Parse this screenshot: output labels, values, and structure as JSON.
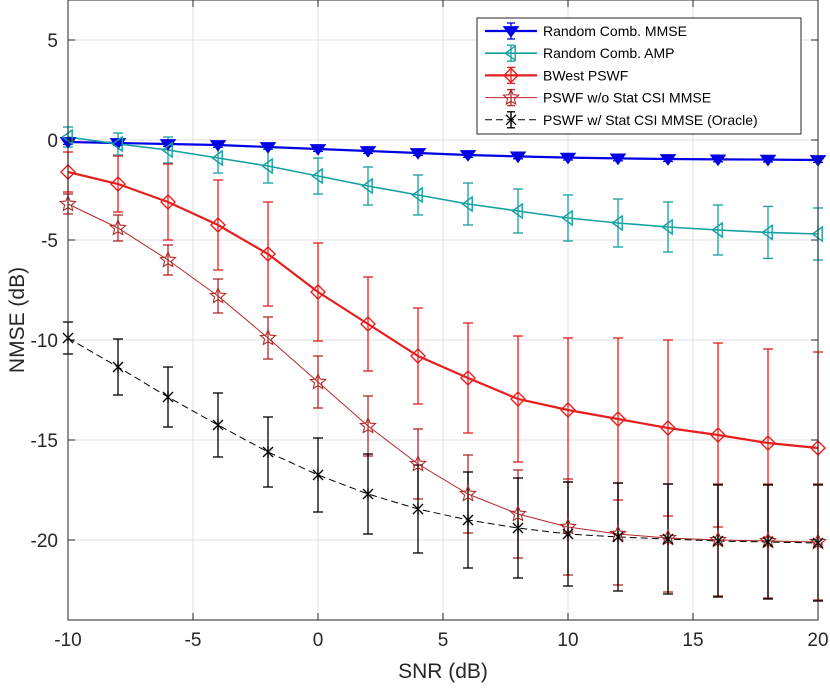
{
  "chart_data": {
    "type": "line",
    "title": "",
    "xlabel": "SNR (dB)",
    "ylabel": "NMSE (dB)",
    "xlim": [
      -10,
      20
    ],
    "ylim": [
      -24,
      7
    ],
    "x_ticks": [
      -10,
      -5,
      0,
      5,
      10,
      15,
      20
    ],
    "x_tick_labels": [
      "-10",
      "-5",
      "0",
      "5",
      "10",
      "15",
      "20"
    ],
    "y_ticks": [
      5,
      0,
      -5,
      -10,
      -15,
      -20
    ],
    "y_tick_labels": [
      "5",
      "0",
      "-5",
      "-10",
      "-15",
      "-20"
    ],
    "grid": true,
    "legend_position": "top-right",
    "x": [
      -10,
      -8,
      -6,
      -4,
      -2,
      0,
      2,
      4,
      6,
      8,
      10,
      12,
      14,
      16,
      18,
      20
    ],
    "series": [
      {
        "name": "Random Comb. MMSE",
        "color": "#0000e6",
        "marker": "triangle-down",
        "line_style": "solid",
        "values": [
          -0.1,
          -0.15,
          -0.2,
          -0.25,
          -0.35,
          -0.45,
          -0.55,
          -0.65,
          -0.75,
          -0.82,
          -0.88,
          -0.92,
          -0.95,
          -0.97,
          -0.98,
          -1.0
        ],
        "error": [
          0.12,
          0.12,
          0.12,
          0.12,
          0.12,
          0.12,
          0.12,
          0.12,
          0.12,
          0.12,
          0.12,
          0.12,
          0.12,
          0.12,
          0.12,
          0.12
        ]
      },
      {
        "name": "Random Comb. AMP",
        "color": "#14a0a0",
        "marker": "triangle-left",
        "line_style": "solid",
        "values": [
          0.15,
          -0.2,
          -0.5,
          -0.9,
          -1.3,
          -1.8,
          -2.3,
          -2.75,
          -3.2,
          -3.55,
          -3.9,
          -4.15,
          -4.35,
          -4.5,
          -4.62,
          -4.7
        ],
        "error": [
          0.5,
          0.55,
          0.65,
          0.75,
          0.85,
          0.9,
          0.95,
          1.0,
          1.05,
          1.1,
          1.15,
          1.2,
          1.25,
          1.25,
          1.3,
          1.3
        ]
      },
      {
        "name": "BWest PSWF",
        "color": "#e61e1e",
        "marker": "diamond",
        "line_style": "solid",
        "values": [
          -1.6,
          -2.2,
          -3.1,
          -4.25,
          -5.7,
          -7.6,
          -9.2,
          -10.8,
          -11.9,
          -12.95,
          -13.5,
          -13.95,
          -14.4,
          -14.75,
          -15.15,
          -15.4
        ],
        "error": [
          1.0,
          1.4,
          1.9,
          2.25,
          2.6,
          2.45,
          2.35,
          2.4,
          2.75,
          3.15,
          3.6,
          4.05,
          4.4,
          4.6,
          4.7,
          4.8
        ]
      },
      {
        "name": "PSWF w/o Stat CSI MMSE",
        "color": "#b42828",
        "marker": "star",
        "line_style": "solid",
        "values": [
          -3.2,
          -4.4,
          -6.0,
          -7.8,
          -9.9,
          -12.1,
          -14.3,
          -16.2,
          -17.7,
          -18.7,
          -19.35,
          -19.7,
          -19.9,
          -20.0,
          -20.05,
          -20.1
        ],
        "error": [
          0.5,
          0.65,
          0.75,
          0.85,
          1.05,
          1.3,
          1.5,
          1.75,
          1.95,
          2.2,
          2.4,
          2.55,
          2.7,
          2.8,
          2.85,
          2.9
        ]
      },
      {
        "name": "PSWF w/ Stat CSI MMSE (Oracle)",
        "color": "#000000",
        "marker": "asterisk",
        "line_style": "dashed",
        "values": [
          -9.9,
          -11.35,
          -12.85,
          -14.25,
          -15.6,
          -16.75,
          -17.7,
          -18.45,
          -19.0,
          -19.4,
          -19.7,
          -19.85,
          -19.95,
          -20.05,
          -20.1,
          -20.15
        ],
        "error": [
          0.8,
          1.4,
          1.5,
          1.6,
          1.75,
          1.85,
          2.0,
          2.2,
          2.4,
          2.5,
          2.6,
          2.7,
          2.75,
          2.8,
          2.85,
          2.9
        ]
      }
    ]
  }
}
